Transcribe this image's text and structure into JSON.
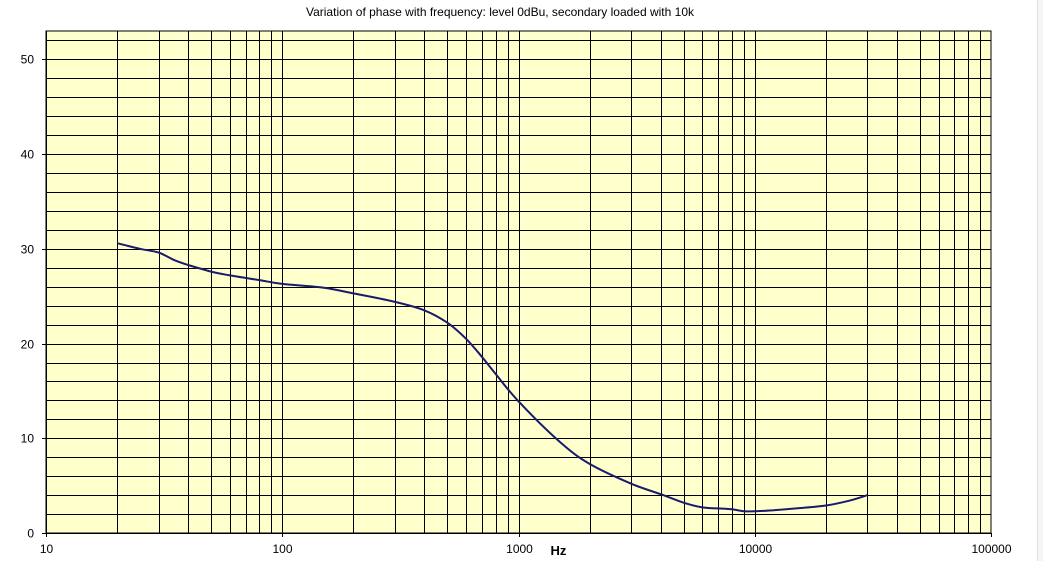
{
  "chart_data": {
    "type": "line",
    "title": "Variation of phase with frequency: level 0dBu, secondary loaded with 10k",
    "xlabel": "Hz",
    "ylabel": "",
    "x_scale": "log",
    "xlim": [
      10,
      100000
    ],
    "ylim": [
      0,
      53
    ],
    "x_ticks": [
      10,
      100,
      1000,
      10000,
      100000
    ],
    "x_tick_labels": [
      "10",
      "100",
      "1000",
      "10000",
      "100000"
    ],
    "y_ticks": [
      0,
      10,
      20,
      30,
      40,
      50
    ],
    "y_tick_labels": [
      "0",
      "10",
      "20",
      "30",
      "40",
      "50"
    ],
    "y_minor_step": 2,
    "x_grid_from": 20,
    "x_grid_to": 100000,
    "grid": true,
    "plot_background": "#ffffcc",
    "grid_color": "#000000",
    "series": [
      {
        "color": "#1a1a6e",
        "x": [
          20,
          25,
          30,
          35,
          40,
          50,
          60,
          80,
          100,
          150,
          200,
          300,
          400,
          500,
          600,
          700,
          800,
          1000,
          1500,
          2000,
          3000,
          4000,
          5000,
          6000,
          7000,
          8000,
          9000,
          10000,
          12000,
          15000,
          20000,
          25000,
          30000
        ],
        "y": [
          30.6,
          30.0,
          29.6,
          28.8,
          28.3,
          27.6,
          27.2,
          26.7,
          26.3,
          25.9,
          25.3,
          24.4,
          23.5,
          22.2,
          20.5,
          18.6,
          16.8,
          13.9,
          9.6,
          7.3,
          5.2,
          4.1,
          3.2,
          2.7,
          2.6,
          2.5,
          2.3,
          2.3,
          2.4,
          2.6,
          2.9,
          3.4,
          4.0
        ]
      }
    ]
  }
}
